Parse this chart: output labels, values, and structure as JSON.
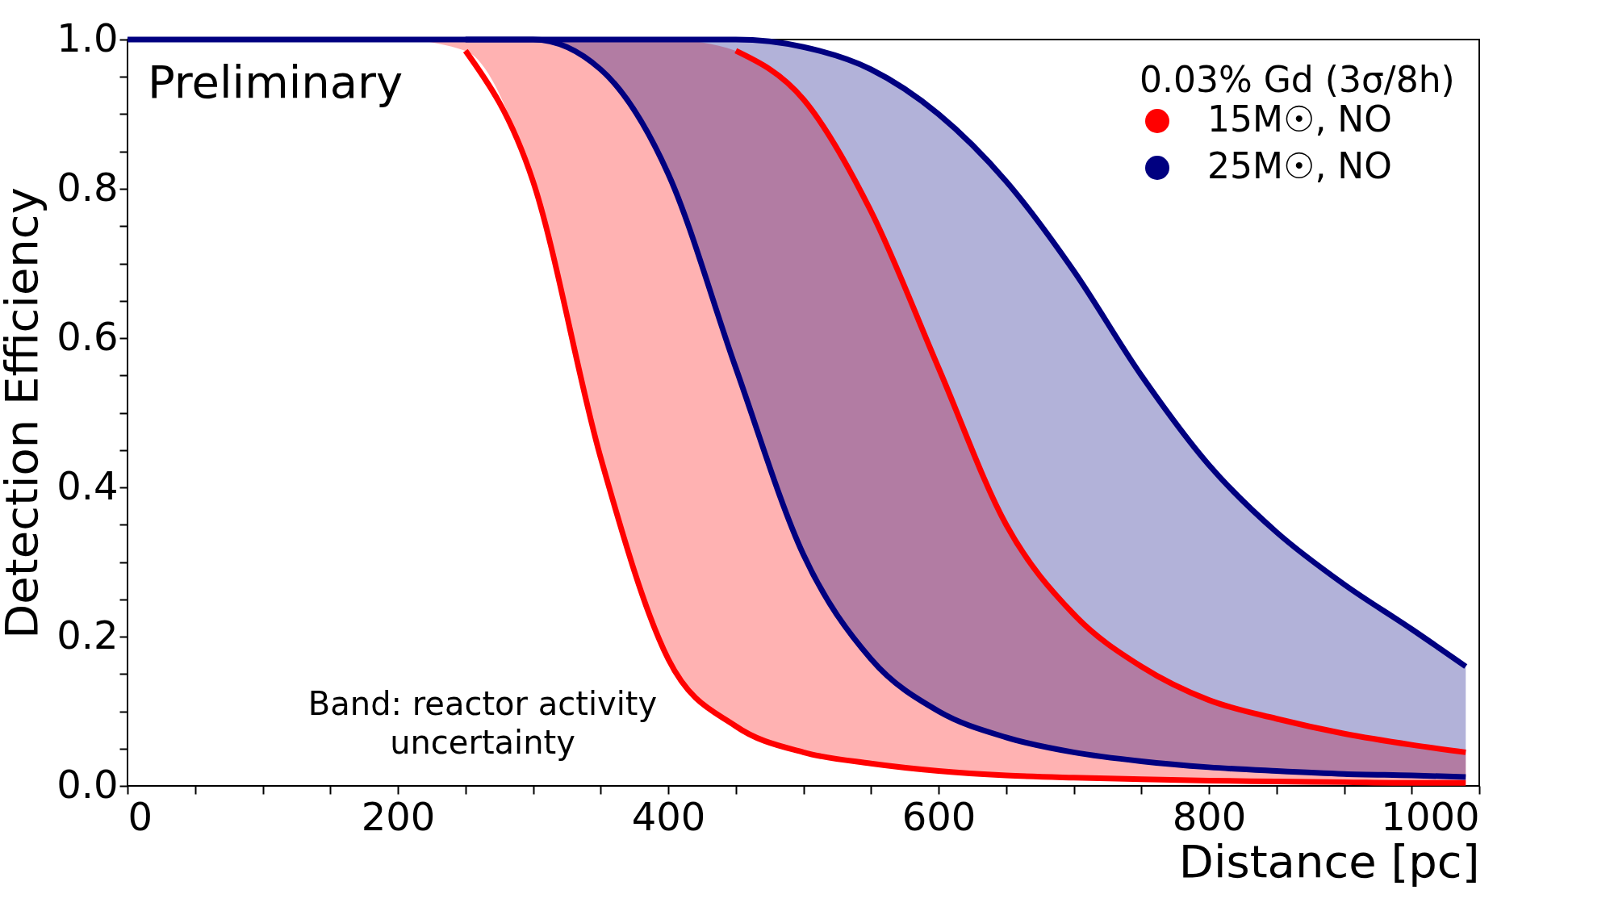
{
  "chart_data": {
    "type": "line",
    "xlabel": "Distance [pc]",
    "ylabel": "Detection Efficiency",
    "legend_title": "0.03% Gd (3σ/8h)",
    "annotations": [
      "Preliminary",
      "Band: reactor activity uncertainty"
    ],
    "x": [
      0,
      50,
      100,
      150,
      200,
      250,
      300,
      350,
      400,
      450,
      500,
      550,
      600,
      650,
      700,
      750,
      800,
      850,
      900,
      950,
      990
    ],
    "series": [
      {
        "name": "15M☉, NO",
        "color": "#ff0000",
        "values": [
          null,
          null,
          null,
          null,
          null,
          0.985,
          0.81,
          0.44,
          0.17,
          0.08,
          0.045,
          0.03,
          0.02,
          0.014,
          0.011,
          0.009,
          0.007,
          0.006,
          0.005,
          0.004,
          0.004
        ],
        "lower": [
          1,
          1,
          1,
          1,
          1,
          0.985,
          0.81,
          0.44,
          0.17,
          0.08,
          0.045,
          0.03,
          0.02,
          0.014,
          0.011,
          0.009,
          0.007,
          0.006,
          0.005,
          0.004,
          0.004
        ],
        "upper": [
          1,
          1,
          1,
          1,
          1,
          1,
          1,
          1,
          1,
          0.985,
          0.92,
          0.77,
          0.56,
          0.35,
          0.23,
          0.16,
          0.115,
          0.09,
          0.07,
          0.055,
          0.045
        ]
      },
      {
        "color": "#ff0000",
        "values": [
          null,
          null,
          null,
          null,
          null,
          null,
          null,
          null,
          null,
          0.985,
          0.92,
          0.77,
          0.56,
          0.35,
          0.23,
          0.16,
          0.115,
          0.09,
          0.07,
          0.055,
          0.045
        ]
      },
      {
        "name": "25M☉, NO",
        "color": "#000080",
        "values": [
          null,
          null,
          null,
          null,
          null,
          1,
          1,
          0.96,
          0.82,
          0.56,
          0.31,
          0.17,
          0.1,
          0.065,
          0.045,
          0.033,
          0.025,
          0.02,
          0.016,
          0.014,
          0.012
        ],
        "lower": [
          1,
          1,
          1,
          1,
          1,
          1,
          1,
          0.96,
          0.82,
          0.56,
          0.31,
          0.17,
          0.1,
          0.065,
          0.045,
          0.033,
          0.025,
          0.02,
          0.016,
          0.014,
          0.012
        ],
        "upper": [
          1,
          1,
          1,
          1,
          1,
          1,
          1,
          1,
          1,
          1,
          0.99,
          0.96,
          0.9,
          0.81,
          0.69,
          0.55,
          0.43,
          0.34,
          0.27,
          0.21,
          0.16
        ]
      },
      {
        "color": "#000080",
        "values": [
          1,
          1,
          1,
          1,
          1,
          1,
          1,
          1,
          1,
          1,
          0.99,
          0.96,
          0.9,
          0.81,
          0.69,
          0.55,
          0.43,
          0.34,
          0.27,
          0.21,
          0.16
        ]
      }
    ],
    "xlim": [
      0,
      1000
    ],
    "xticks": [
      0,
      {
        "value": 50,
        "label": null
      },
      {
        "value": 100,
        "label": null
      },
      {
        "value": 150,
        "label": null
      },
      200,
      {
        "value": 250,
        "label": null
      },
      {
        "value": 300,
        "label": null
      },
      {
        "value": 350,
        "label": null
      },
      400,
      {
        "value": 450,
        "label": null
      },
      {
        "value": 500,
        "label": null
      },
      {
        "value": 550,
        "label": null
      },
      600,
      {
        "value": 650,
        "label": null
      },
      {
        "value": 700,
        "label": null
      },
      {
        "value": 750,
        "label": null
      },
      800,
      {
        "value": 850,
        "label": null
      },
      {
        "value": 900,
        "label": null
      },
      {
        "value": 950,
        "label": null
      },
      1000
    ],
    "ylim": [
      0,
      1
    ],
    "yticks": [
      {
        "value": 0,
        "label": "0.0"
      },
      {
        "value": 0.05,
        "label": null
      },
      {
        "value": 0.1,
        "label": null
      },
      {
        "value": 0.15,
        "label": null
      },
      0.2,
      {
        "value": 0.25,
        "label": null
      },
      {
        "value": 0.3,
        "label": null
      },
      {
        "value": 0.35,
        "label": null
      },
      0.4,
      {
        "value": 0.45,
        "label": null
      },
      {
        "value": 0.5,
        "label": null
      },
      {
        "value": 0.55,
        "label": null
      },
      0.6,
      {
        "value": 0.65,
        "label": null
      },
      {
        "value": 0.7,
        "label": null
      },
      {
        "value": 0.75,
        "label": null
      },
      0.8,
      {
        "value": 0.85,
        "label": null
      },
      {
        "value": 0.9,
        "label": null
      },
      {
        "value": 0.95,
        "label": null
      },
      {
        "value": 1,
        "label": "1.0"
      }
    ],
    "grid": false,
    "legend": "top right",
    "marker": "none",
    "line_style": "solid"
  }
}
